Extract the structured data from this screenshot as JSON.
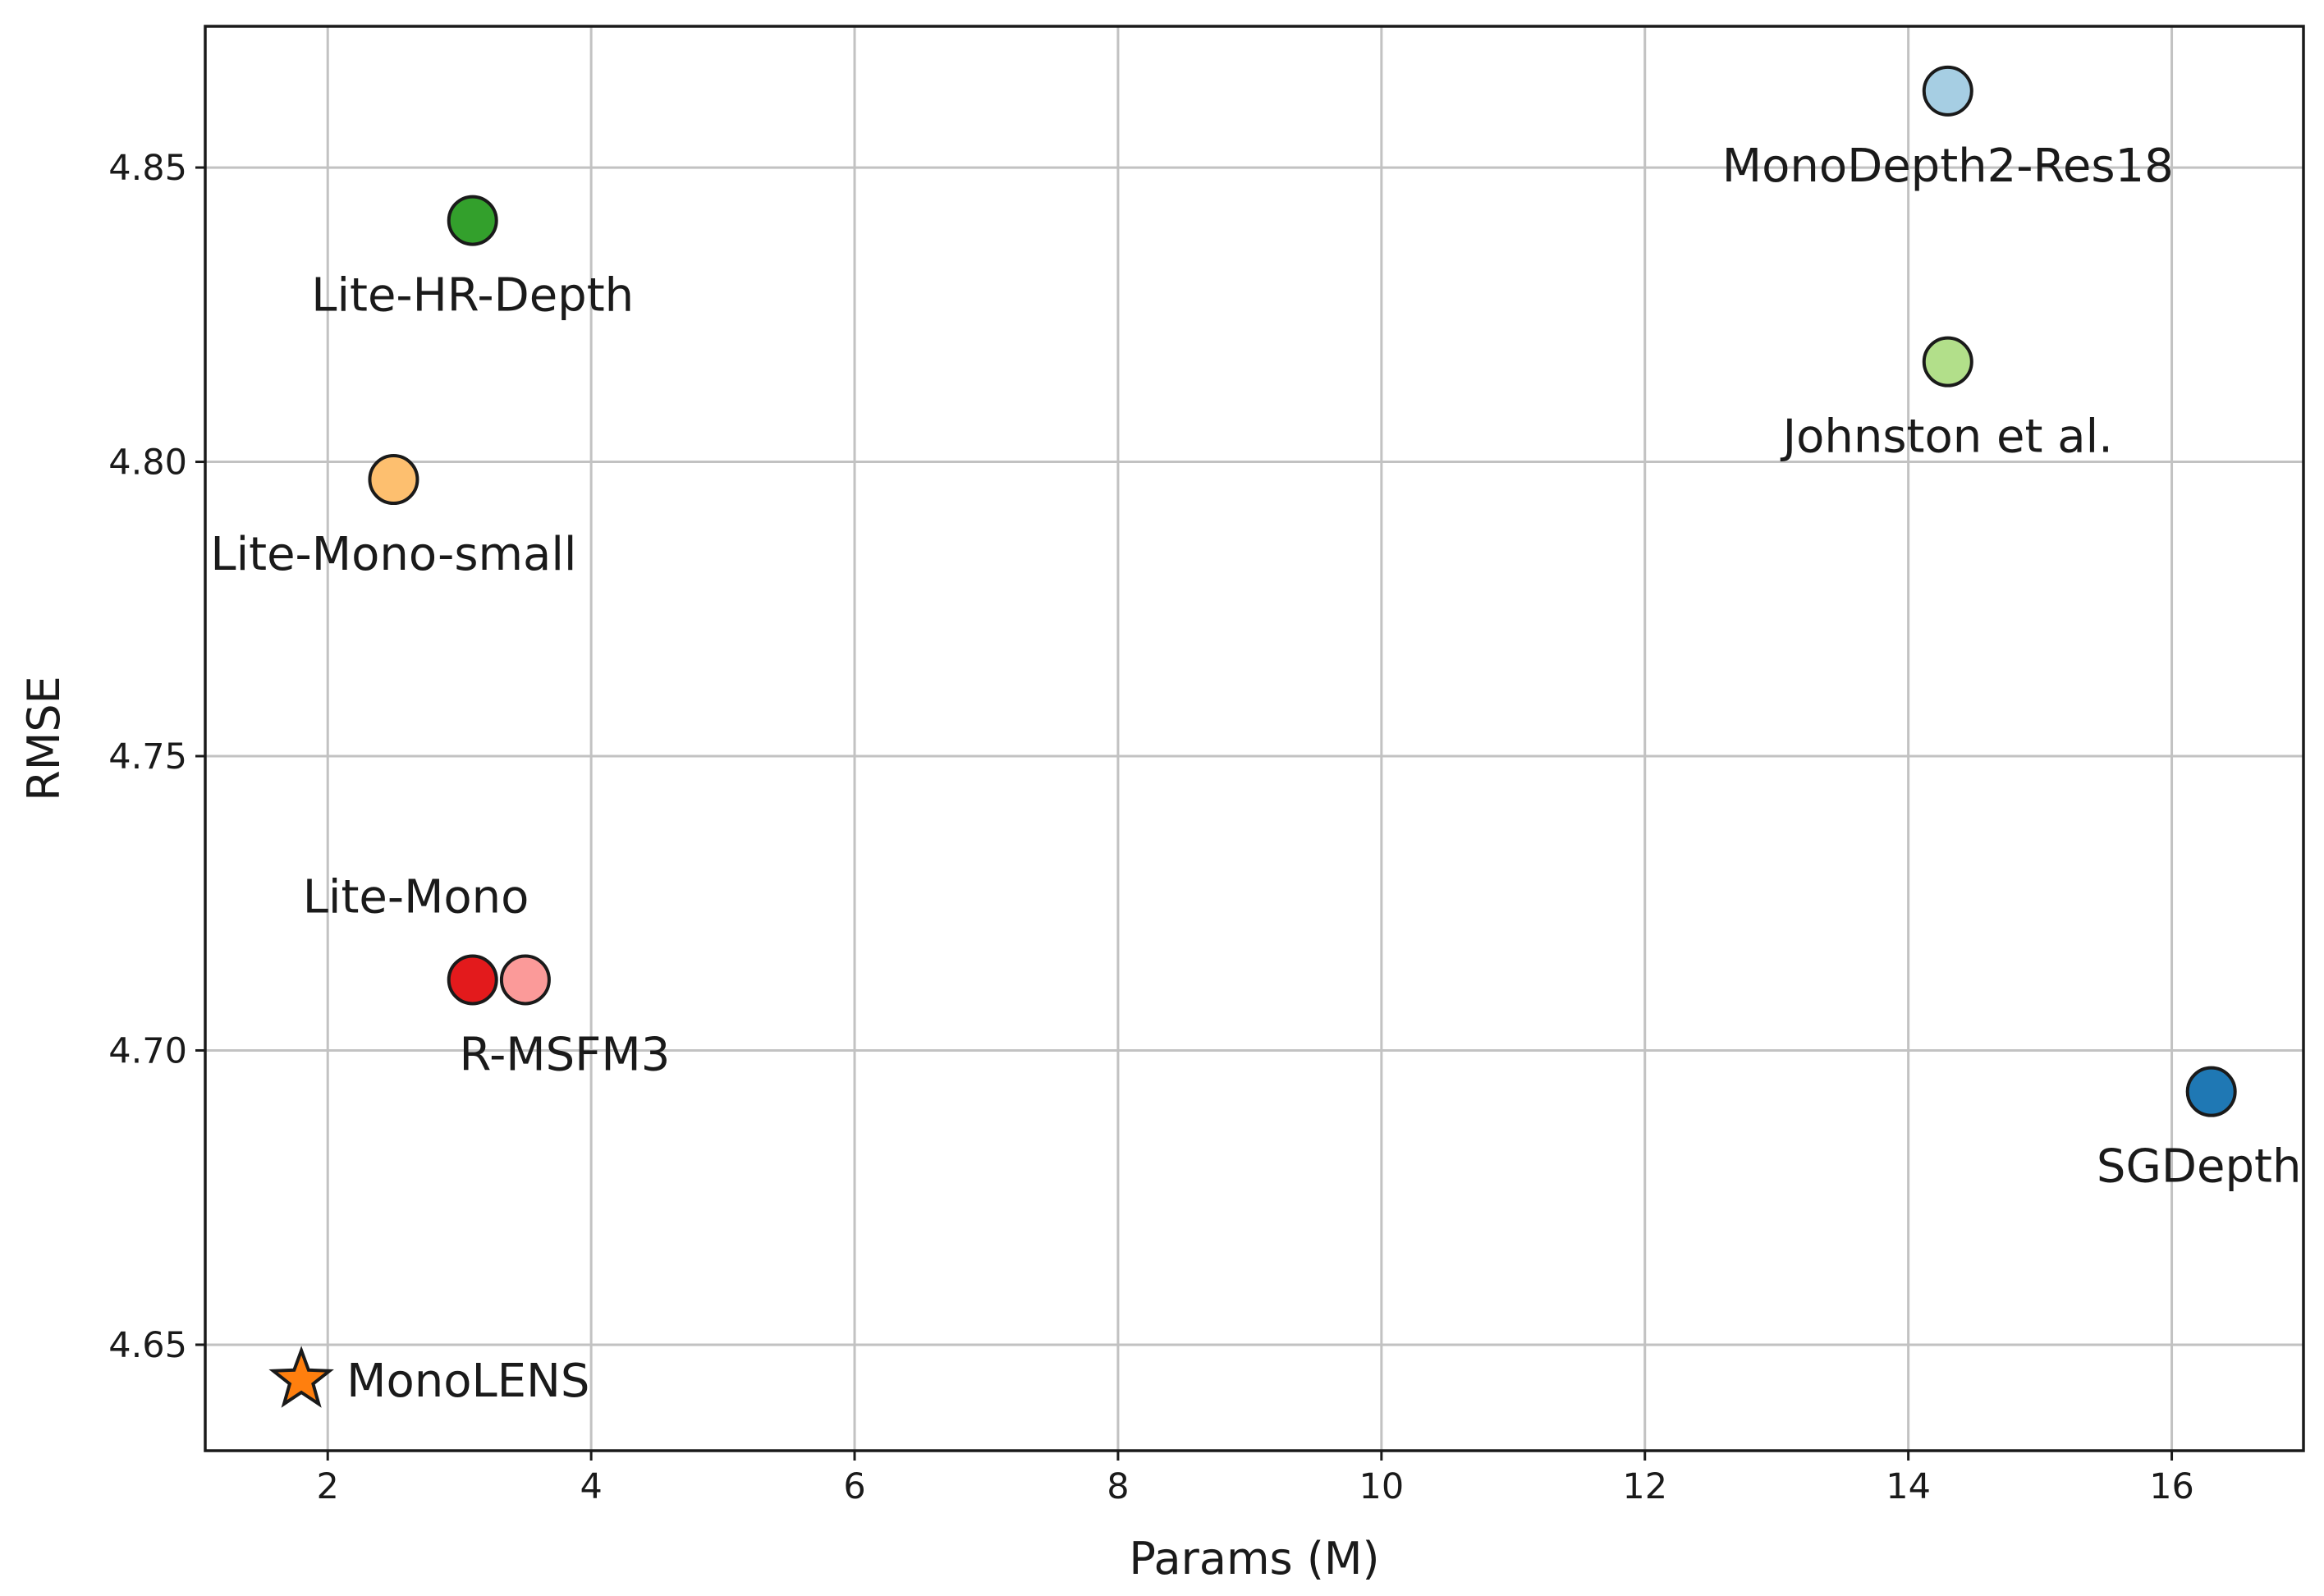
{
  "chart_data": {
    "type": "scatter",
    "title": "",
    "xlabel": "Params (M)",
    "ylabel": "RMSE",
    "xlim": [
      1.07,
      17.0
    ],
    "ylim": [
      4.632,
      4.874
    ],
    "xticks": [
      2,
      4,
      6,
      8,
      10,
      12,
      14,
      16
    ],
    "xtick_labels": [
      "2",
      "4",
      "6",
      "8",
      "10",
      "12",
      "14",
      "16"
    ],
    "yticks": [
      4.65,
      4.7,
      4.75,
      4.8,
      4.85
    ],
    "ytick_labels": [
      "4.65",
      "4.70",
      "4.75",
      "4.80",
      "4.85"
    ],
    "grid": true,
    "points": [
      {
        "label": "MonoDepth2-Res18",
        "x": 14.3,
        "y": 4.863,
        "color": "#a6cee3",
        "marker": "circle",
        "label_pos": "below"
      },
      {
        "label": "Lite-HR-Depth",
        "x": 3.1,
        "y": 4.841,
        "color": "#33a02c",
        "marker": "circle",
        "label_pos": "below"
      },
      {
        "label": "Johnston et al.",
        "x": 14.3,
        "y": 4.817,
        "color": "#b2df8a",
        "marker": "circle",
        "label_pos": "below"
      },
      {
        "label": "Lite-Mono-small",
        "x": 2.5,
        "y": 4.797,
        "color": "#fdbf6f",
        "marker": "circle",
        "label_pos": "below"
      },
      {
        "label": "Lite-Mono",
        "x": 3.1,
        "y": 4.712,
        "color": "#e31a1c",
        "marker": "circle",
        "label_pos": "above"
      },
      {
        "label": "R-MSFM3",
        "x": 3.5,
        "y": 4.712,
        "color": "#fb9a99",
        "marker": "circle",
        "label_pos": "below"
      },
      {
        "label": "SGDepth",
        "x": 16.3,
        "y": 4.693,
        "color": "#1f78b4",
        "marker": "circle",
        "label_pos": "below"
      },
      {
        "label": "MonoLENS",
        "x": 1.8,
        "y": 4.644,
        "color": "#ff7f0e",
        "marker": "star",
        "label_pos": "right"
      }
    ]
  }
}
